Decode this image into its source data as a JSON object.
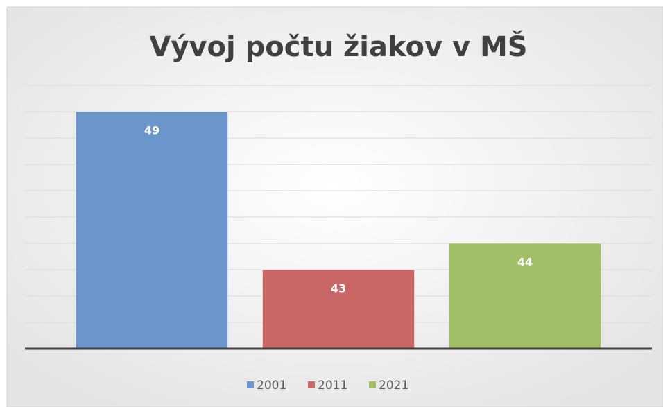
{
  "chart_data": {
    "type": "bar",
    "title": "Vývoj počtu žiakov v MŠ",
    "categories": [
      null
    ],
    "series": [
      {
        "name": "2001",
        "color": "#6a96cc",
        "values": [
          49
        ]
      },
      {
        "name": "2011",
        "color": "#c96766",
        "values": [
          43
        ]
      },
      {
        "name": "2021",
        "color": "#a1bf66",
        "values": [
          44
        ]
      }
    ],
    "ylim": [
      40,
      50
    ],
    "yticks": [
      40,
      41,
      42,
      43,
      44,
      45,
      46,
      47,
      48,
      49,
      50
    ],
    "grid": true,
    "legend": "bottom"
  }
}
